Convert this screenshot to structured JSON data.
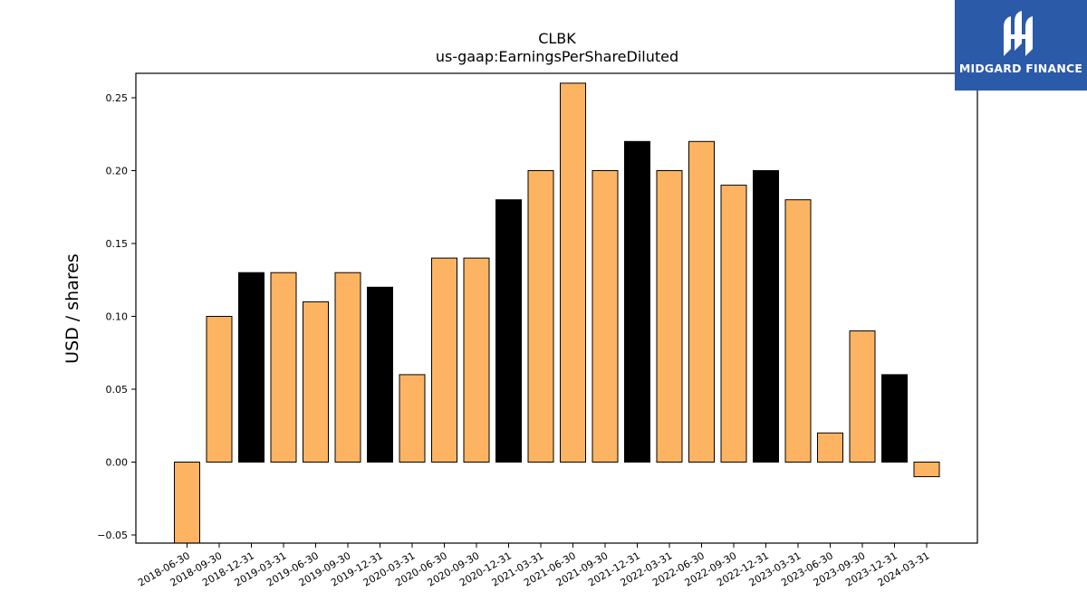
{
  "brand": {
    "name": "MIDGARD FINANCE",
    "logo_icon": "midgard-logo-icon",
    "bg_color": "#2b5aa8"
  },
  "chart_data": {
    "type": "bar",
    "title": "CLBK",
    "subtitle": "us-gaap:EarningsPerShareDiluted",
    "xlabel": "",
    "ylabel": "USD / shares",
    "ylim": [
      -0.056,
      0.266
    ],
    "yticks": [
      -0.05,
      0.0,
      0.05,
      0.1,
      0.15,
      0.2,
      0.25
    ],
    "ytick_labels": [
      "−0.05",
      "0.00",
      "0.05",
      "0.10",
      "0.15",
      "0.20",
      "0.25"
    ],
    "grid": false,
    "categories": [
      "2018-06-30",
      "2018-09-30",
      "2018-12-31",
      "2019-03-31",
      "2019-06-30",
      "2019-09-30",
      "2019-12-31",
      "2020-03-31",
      "2020-06-30",
      "2020-09-30",
      "2020-12-31",
      "2021-03-31",
      "2021-06-30",
      "2021-09-30",
      "2021-12-31",
      "2022-03-31",
      "2022-06-30",
      "2022-09-30",
      "2022-12-31",
      "2023-03-31",
      "2023-06-30",
      "2023-09-30",
      "2023-12-31",
      "2024-03-31"
    ],
    "values": [
      -0.06,
      0.1,
      0.13,
      0.13,
      0.11,
      0.13,
      0.12,
      0.06,
      0.14,
      0.14,
      0.18,
      0.2,
      0.26,
      0.2,
      0.22,
      0.2,
      0.22,
      0.19,
      0.2,
      0.18,
      0.02,
      0.09,
      0.06,
      -0.01
    ],
    "bar_colors": [
      "#fdb462",
      "#fdb462",
      "#000000",
      "#fdb462",
      "#fdb462",
      "#fdb462",
      "#000000",
      "#fdb462",
      "#fdb462",
      "#fdb462",
      "#000000",
      "#fdb462",
      "#fdb462",
      "#fdb462",
      "#000000",
      "#fdb462",
      "#fdb462",
      "#fdb462",
      "#000000",
      "#fdb462",
      "#fdb462",
      "#fdb462",
      "#000000",
      "#fdb462"
    ]
  }
}
